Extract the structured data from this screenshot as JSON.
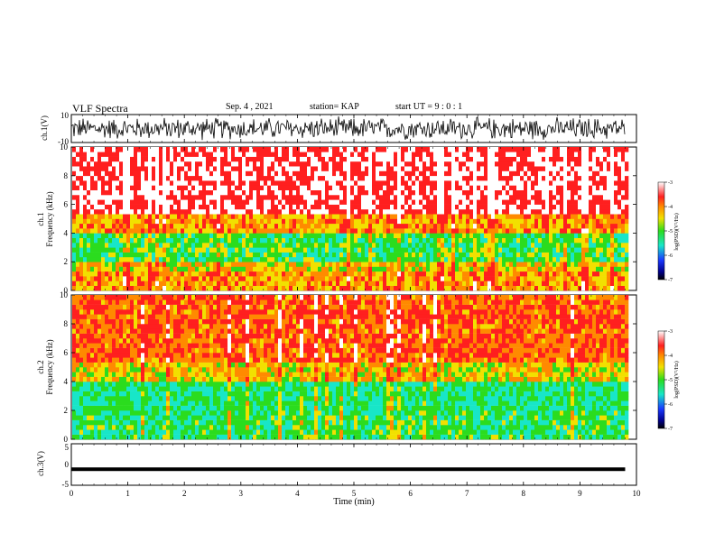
{
  "header": {
    "title": "VLF Spectra",
    "date": "Sep. 4 , 2021",
    "station": "station= KAP",
    "start": "start  UT =   9 : 0  : 1"
  },
  "colors": {
    "white": "#ffffff",
    "red": "#ff1f1f",
    "orange": "#ff8a00",
    "yellow": "#f2e000",
    "green": "#2bdc1e",
    "cyan": "#18e6c8",
    "blue": "#1a39ff",
    "darkblue": "#00008b",
    "black": "#000000"
  },
  "chart_data": [
    {
      "type": "line",
      "name": "ch1-waveform",
      "ylabel": "ch.1(V)",
      "ylim": [
        -10,
        10
      ],
      "yticks": [
        "10",
        "-10"
      ],
      "xlim": [
        0,
        10
      ],
      "description_values": {
        "min": -9,
        "max": 9
      }
    },
    {
      "type": "heatmap",
      "name": "ch1-spectrogram",
      "ylabel_line1": "ch.1",
      "ylabel_line2": "Frequency (kHz)",
      "ylim": [
        0,
        10
      ],
      "yticks": [
        "0",
        "2",
        "4",
        "6",
        "8",
        "10"
      ],
      "xlim": [
        0,
        10.0
      ],
      "data_extent_min": 9.8,
      "colorbar": {
        "label": "log(PSD)(V²/Hz)",
        "ticks": [
          "-3",
          "-4",
          "-5",
          "-6",
          "-7"
        ],
        "range": [
          -7,
          -3
        ]
      },
      "bands_khz": [
        {
          "from": 0,
          "to": 1.2,
          "psd": -4.0
        },
        {
          "from": 1.2,
          "to": 2.0,
          "psd": -4.2
        },
        {
          "from": 2.0,
          "to": 4.0,
          "psd": -4.8
        },
        {
          "from": 4.0,
          "to": 5.5,
          "psd": -4.0
        },
        {
          "from": 5.5,
          "to": 10,
          "psd": -3.2
        }
      ]
    },
    {
      "type": "heatmap",
      "name": "ch2-spectrogram",
      "ylabel_line1": "ch.2",
      "ylabel_line2": "Frequency (kHz)",
      "ylim": [
        0,
        10
      ],
      "yticks": [
        "0",
        "2",
        "4",
        "6",
        "8",
        "10"
      ],
      "xlim": [
        0,
        10.0
      ],
      "data_extent_min": 9.8,
      "colorbar": {
        "label": "log(PSD)(V²/Hz)",
        "ticks": [
          "-3",
          "-4",
          "-5",
          "-6",
          "-7"
        ],
        "range": [
          -7,
          -3
        ]
      },
      "bands_khz": [
        {
          "from": 0,
          "to": 2.0,
          "psd": -4.9
        },
        {
          "from": 2.0,
          "to": 4.0,
          "psd": -5.0
        },
        {
          "from": 4.0,
          "to": 5.5,
          "psd": -4.2
        },
        {
          "from": 5.5,
          "to": 10,
          "psd": -3.7
        }
      ]
    },
    {
      "type": "line",
      "name": "ch3-waveform",
      "ylabel": "ch.3(V)",
      "ylim": [
        -5,
        5
      ],
      "yticks": [
        "5",
        "0",
        "-5"
      ],
      "xlim": [
        0,
        10
      ],
      "level_v": -1.0
    }
  ],
  "xaxis": {
    "label": "Time (min)",
    "ticks": [
      "0",
      "1",
      "2",
      "3",
      "4",
      "5",
      "6",
      "7",
      "8",
      "9",
      "10"
    ]
  }
}
